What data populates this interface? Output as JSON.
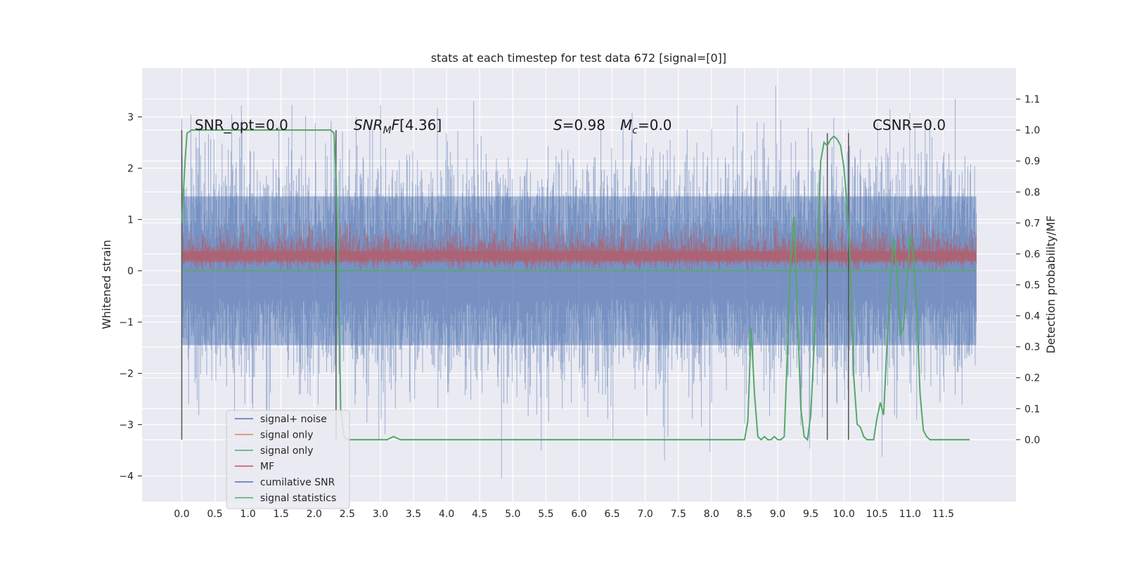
{
  "chart_data": {
    "type": "line",
    "title": "stats at each timestep for test data 672 [signal=[0]]",
    "ylabel": "Whitened strain",
    "y2label": "Detection probability/MF",
    "xlim": [
      -0.6,
      12.6
    ],
    "ylim": [
      -4.5,
      3.95
    ],
    "y2lim": [
      -0.2,
      1.2
    ],
    "x_ticks": [
      "0.0",
      "0.5",
      "1.0",
      "1.5",
      "2.0",
      "2.5",
      "3.0",
      "3.5",
      "4.0",
      "4.5",
      "5.0",
      "5.5",
      "6.0",
      "6.5",
      "7.0",
      "7.5",
      "8.0",
      "8.5",
      "9.0",
      "9.5",
      "10.0",
      "10.5",
      "11.0",
      "11.5"
    ],
    "y_ticks": [
      -4,
      -3,
      -2,
      -1,
      0,
      1,
      2,
      3
    ],
    "y2_ticks": [
      0.0,
      0.1,
      0.2,
      0.3,
      0.4,
      0.5,
      0.6,
      0.7,
      0.8,
      0.9,
      1.0,
      1.1
    ],
    "grid": true,
    "legend_placement": "lower-left",
    "colors": {
      "signal_noise": "#4c72b0",
      "signal_only_1": "#dd8452",
      "signal_only_2": "#55a868",
      "mf": "#c44e52",
      "cumulative_snr": "#4c72b0",
      "signal_statistics": "#55a868",
      "vlines": "#555555",
      "background": "#eaeaf2"
    },
    "series": [
      {
        "name": "signal+ noise",
        "x_range": [
          0.0,
          12.0
        ],
        "envelope_mean": 0.0,
        "envelope_std": 1.0,
        "extremes": {
          "max": 3.6,
          "min": -4.05
        }
      },
      {
        "name": "signal only",
        "values": [
          0
        ]
      },
      {
        "name": "signal only",
        "values": [
          0
        ]
      },
      {
        "name": "MF",
        "x_range": [
          0.0,
          12.0
        ],
        "baseline_y": 0.3,
        "spread": 0.25,
        "extremes": {
          "max": 1.0
        }
      },
      {
        "name": "cumilative SNR"
      },
      {
        "name": "signal statistics",
        "axis": "right",
        "x": [
          0.0,
          0.05,
          0.08,
          0.15,
          0.3,
          1.0,
          2.0,
          2.25,
          2.3,
          2.33,
          2.37,
          2.4,
          2.45,
          2.5,
          3.0,
          3.1,
          3.2,
          3.3,
          3.4,
          3.5,
          4.0,
          4.1,
          4.2,
          5.0,
          7.0,
          7.2,
          7.3,
          7.4,
          8.5,
          8.55,
          8.6,
          8.65,
          8.7,
          8.75,
          8.8,
          8.85,
          8.9,
          8.95,
          9.0,
          9.05,
          9.1,
          9.15,
          9.2,
          9.25,
          9.3,
          9.35,
          9.4,
          9.45,
          9.5,
          9.55,
          9.6,
          9.65,
          9.7,
          9.75,
          9.8,
          9.85,
          9.9,
          9.95,
          10.0,
          10.05,
          10.1,
          10.15,
          10.2,
          10.25,
          10.3,
          10.35,
          10.4,
          10.45,
          10.5,
          10.55,
          10.6,
          10.65,
          10.7,
          10.75,
          10.8,
          10.85,
          10.9,
          10.95,
          11.0,
          11.05,
          11.1,
          11.15,
          11.2,
          11.25,
          11.3,
          11.35,
          11.4,
          11.45,
          11.5,
          11.55,
          11.6,
          11.7,
          11.9
        ],
        "values": [
          0.7,
          0.9,
          0.99,
          1.0,
          1.0,
          1.0,
          1.0,
          1.0,
          0.99,
          0.85,
          0.5,
          0.1,
          0.01,
          0.0,
          0.0,
          0.0,
          0.01,
          0.0,
          0.0,
          0.0,
          0.0,
          0.0,
          0.0,
          0.0,
          0.0,
          0.0,
          0.0,
          0.0,
          0.0,
          0.06,
          0.36,
          0.15,
          0.01,
          0.0,
          0.01,
          0.0,
          0.0,
          0.01,
          0.0,
          0.0,
          0.01,
          0.3,
          0.6,
          0.72,
          0.4,
          0.1,
          0.01,
          0.0,
          0.08,
          0.3,
          0.6,
          0.9,
          0.96,
          0.95,
          0.97,
          0.98,
          0.97,
          0.95,
          0.88,
          0.75,
          0.55,
          0.2,
          0.05,
          0.04,
          0.01,
          0.0,
          0.0,
          0.0,
          0.07,
          0.12,
          0.08,
          0.3,
          0.5,
          0.65,
          0.55,
          0.34,
          0.36,
          0.5,
          0.66,
          0.6,
          0.42,
          0.15,
          0.03,
          0.01,
          0.0,
          0.0,
          0.0,
          0.0,
          0.0,
          0.0,
          0.0,
          0.0,
          0.0
        ]
      }
    ],
    "vertical_lines": [
      {
        "x": 0.0,
        "y2_top": 1.0
      },
      {
        "x": 2.33,
        "y2_top": 1.0
      },
      {
        "x": 9.75,
        "y2_top": 0.99
      },
      {
        "x": 10.07,
        "y2_top": 0.99
      }
    ],
    "annotations": {
      "snr_opt": "SNR_opt=0.0",
      "snr_mf": "[4.36]",
      "s_stat": "=0.98",
      "mc": "=0.0",
      "csnr": "CSNR=0.0"
    }
  },
  "legend": [
    {
      "label": "signal+ noise",
      "color": "#4c72b0"
    },
    {
      "label": "signal only",
      "color": "#dd8452"
    },
    {
      "label": "signal only",
      "color": "#55a868"
    },
    {
      "label": "MF",
      "color": "#c44e52"
    },
    {
      "label": "cumilative SNR",
      "color": "#4c72b0"
    },
    {
      "label": "signal statistics",
      "color": "#55a868"
    }
  ]
}
